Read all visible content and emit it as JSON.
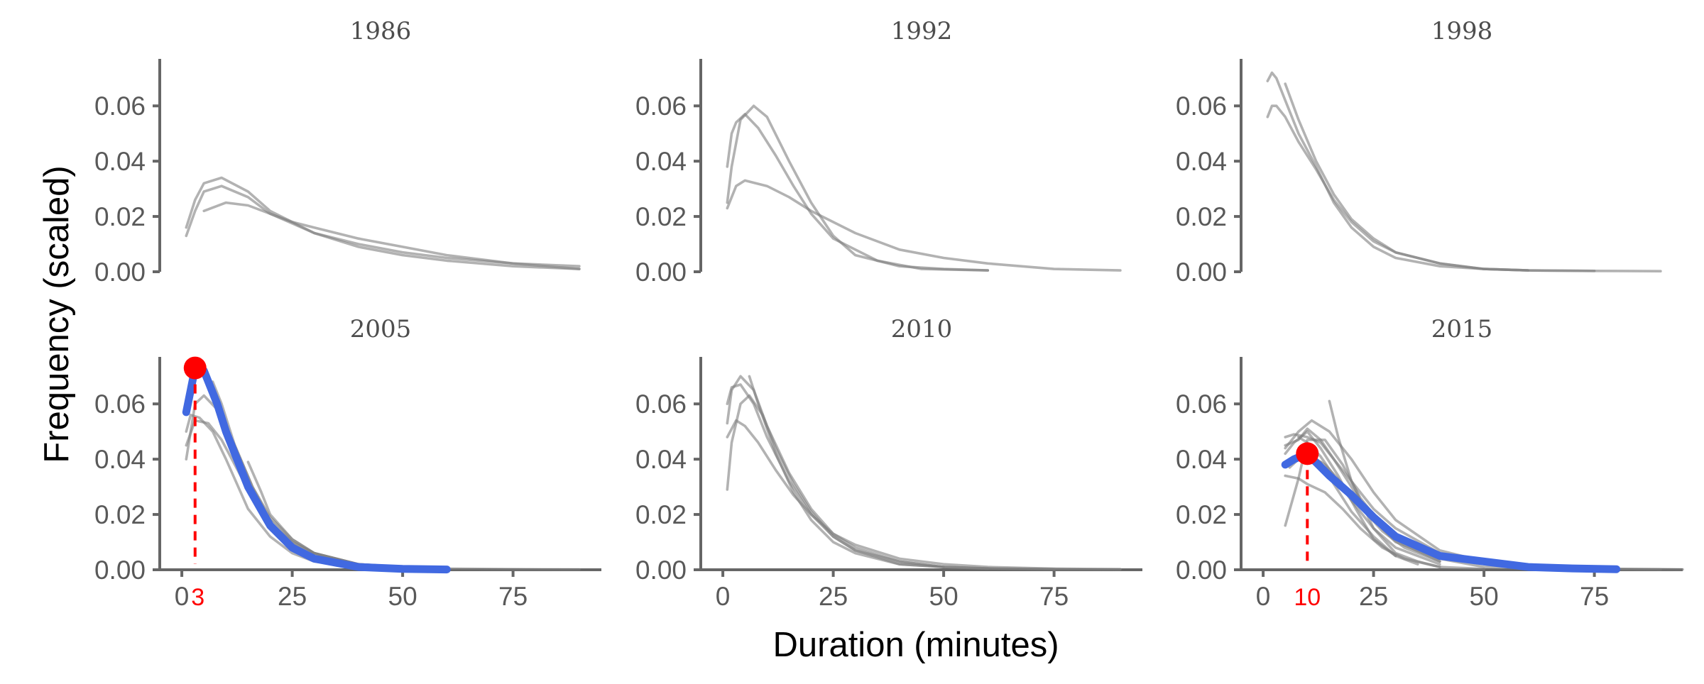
{
  "chart_data": {
    "type": "line",
    "layout": "facet-grid-2x3",
    "xlabel": "Duration (minutes)",
    "ylabel": "Frequency (scaled)",
    "xlim": [
      -5,
      95
    ],
    "ylim": [
      0,
      0.077
    ],
    "x_ticks": [
      0,
      25,
      50,
      75
    ],
    "y_ticks": [
      0,
      0.02,
      0.04,
      0.06
    ],
    "y_tick_labels": [
      "0.00",
      "0.02",
      "0.04",
      "0.06"
    ],
    "colors": {
      "background_lines": "#7f7f7f",
      "highlight_line": "#4169e1",
      "mode_marker": "#ff0000",
      "axis": "#666666",
      "tick_text": "#595959"
    },
    "panels": [
      {
        "title": "1986",
        "series": [
          {
            "x": [
              1,
              3,
              5,
              9,
              15,
              20,
              30,
              40,
              50,
              60,
              75,
              90
            ],
            "y": [
              0.016,
              0.026,
              0.032,
              0.034,
              0.029,
              0.022,
              0.014,
              0.009,
              0.006,
              0.004,
              0.002,
              0.001
            ]
          },
          {
            "x": [
              1,
              3,
              5,
              9,
              15,
              20,
              30,
              40,
              50,
              60,
              75,
              90
            ],
            "y": [
              0.013,
              0.022,
              0.029,
              0.031,
              0.027,
              0.021,
              0.014,
              0.01,
              0.007,
              0.005,
              0.003,
              0.001
            ]
          },
          {
            "x": [
              5,
              10,
              15,
              20,
              25,
              30,
              40,
              50,
              60,
              75,
              90
            ],
            "y": [
              0.022,
              0.025,
              0.024,
              0.021,
              0.018,
              0.016,
              0.012,
              0.009,
              0.006,
              0.003,
              0.002
            ]
          }
        ]
      },
      {
        "title": "1992",
        "series": [
          {
            "x": [
              1,
              2,
              4,
              7,
              10,
              15,
              20,
              25,
              30,
              40,
              50,
              60
            ],
            "y": [
              0.025,
              0.038,
              0.055,
              0.06,
              0.056,
              0.04,
              0.025,
              0.013,
              0.006,
              0.002,
              0.001,
              0.0005
            ]
          },
          {
            "x": [
              1,
              2,
              3,
              5,
              8,
              12,
              16,
              20,
              25,
              35,
              45,
              60
            ],
            "y": [
              0.038,
              0.05,
              0.054,
              0.057,
              0.052,
              0.042,
              0.031,
              0.021,
              0.012,
              0.004,
              0.001,
              0.0005
            ]
          },
          {
            "x": [
              1,
              3,
              5,
              10,
              15,
              20,
              30,
              40,
              50,
              60,
              75,
              90
            ],
            "y": [
              0.023,
              0.031,
              0.033,
              0.031,
              0.027,
              0.022,
              0.014,
              0.008,
              0.005,
              0.003,
              0.001,
              0.0005
            ]
          }
        ]
      },
      {
        "title": "1998",
        "series": [
          {
            "x": [
              1,
              2,
              3,
              5,
              8,
              12,
              16,
              20,
              25,
              30,
              40,
              50,
              60,
              75
            ],
            "y": [
              0.069,
              0.072,
              0.07,
              0.062,
              0.05,
              0.038,
              0.025,
              0.016,
              0.009,
              0.005,
              0.002,
              0.001,
              0.0005,
              0.0003
            ]
          },
          {
            "x": [
              1,
              2,
              3,
              5,
              8,
              12,
              16,
              20,
              25,
              30,
              40,
              50,
              60,
              75,
              90
            ],
            "y": [
              0.056,
              0.06,
              0.06,
              0.056,
              0.047,
              0.037,
              0.026,
              0.018,
              0.011,
              0.007,
              0.003,
              0.001,
              0.0005,
              0.0003,
              0.0002
            ]
          },
          {
            "x": [
              5,
              8,
              12,
              16,
              20,
              25,
              30,
              40,
              50,
              60
            ],
            "y": [
              0.068,
              0.055,
              0.04,
              0.028,
              0.019,
              0.012,
              0.007,
              0.003,
              0.001,
              0.0005
            ]
          }
        ]
      },
      {
        "title": "2005",
        "mode": {
          "x": 3,
          "y": 0.073,
          "label": "3"
        },
        "highlight": {
          "x": [
            1,
            3,
            5,
            8,
            10,
            15,
            20,
            25,
            30,
            40,
            50,
            60
          ],
          "y": [
            0.057,
            0.073,
            0.072,
            0.06,
            0.05,
            0.03,
            0.016,
            0.008,
            0.004,
            0.001,
            0.0003,
            0.0001
          ]
        },
        "series": [
          {
            "x": [
              1,
              3,
              5,
              8,
              12,
              16,
              20,
              25,
              30,
              40,
              50,
              60,
              75,
              90
            ],
            "y": [
              0.04,
              0.06,
              0.063,
              0.058,
              0.045,
              0.03,
              0.018,
              0.01,
              0.006,
              0.002,
              0.001,
              0.0004,
              0.0002,
              0.0001
            ]
          },
          {
            "x": [
              1,
              2,
              4,
              7,
              10,
              15,
              20,
              25,
              30,
              40,
              50
            ],
            "y": [
              0.05,
              0.056,
              0.055,
              0.05,
              0.04,
              0.022,
              0.012,
              0.006,
              0.003,
              0.001,
              0.0003
            ]
          },
          {
            "x": [
              1,
              3,
              6,
              9,
              12,
              16,
              20,
              25,
              30,
              40,
              50,
              60
            ],
            "y": [
              0.045,
              0.054,
              0.053,
              0.047,
              0.038,
              0.026,
              0.017,
              0.01,
              0.006,
              0.002,
              0.001,
              0.0003
            ]
          },
          {
            "x": [
              7,
              9,
              12,
              16,
              20,
              25,
              30,
              40
            ],
            "y": [
              0.068,
              0.06,
              0.045,
              0.03,
              0.019,
              0.011,
              0.006,
              0.002
            ]
          },
          {
            "x": [
              15,
              18,
              20,
              25,
              30,
              40,
              50
            ],
            "y": [
              0.039,
              0.028,
              0.02,
              0.011,
              0.006,
              0.002,
              0.001
            ]
          }
        ]
      },
      {
        "title": "2010",
        "series": [
          {
            "x": [
              1,
              2,
              4,
              7,
              10,
              15,
              20,
              25,
              30,
              40,
              50,
              60,
              75,
              90
            ],
            "y": [
              0.053,
              0.065,
              0.07,
              0.065,
              0.052,
              0.035,
              0.022,
              0.013,
              0.008,
              0.003,
              0.001,
              0.0005,
              0.0002,
              0.0001
            ]
          },
          {
            "x": [
              1,
              2,
              4,
              7,
              10,
              15,
              20,
              25,
              30,
              40,
              50,
              60,
              75
            ],
            "y": [
              0.06,
              0.066,
              0.067,
              0.06,
              0.048,
              0.032,
              0.02,
              0.012,
              0.007,
              0.003,
              0.001,
              0.0005,
              0.0002
            ]
          },
          {
            "x": [
              1,
              3,
              5,
              8,
              12,
              16,
              20,
              25,
              30,
              40,
              50,
              60,
              75,
              90
            ],
            "y": [
              0.048,
              0.054,
              0.052,
              0.046,
              0.036,
              0.027,
              0.02,
              0.013,
              0.009,
              0.004,
              0.002,
              0.001,
              0.0004,
              0.0002
            ]
          },
          {
            "x": [
              1,
              2,
              4,
              6,
              9,
              12,
              16,
              20,
              25,
              30,
              40,
              50
            ],
            "y": [
              0.029,
              0.046,
              0.06,
              0.063,
              0.056,
              0.044,
              0.031,
              0.021,
              0.012,
              0.007,
              0.002,
              0.001
            ]
          },
          {
            "x": [
              6,
              8,
              12,
              16,
              20,
              25,
              30,
              40,
              50,
              60
            ],
            "y": [
              0.07,
              0.06,
              0.042,
              0.028,
              0.018,
              0.01,
              0.006,
              0.002,
              0.001,
              0.0004
            ]
          }
        ]
      },
      {
        "title": "2015",
        "mode": {
          "x": 10,
          "y": 0.042,
          "label": "10"
        },
        "highlight": {
          "x": [
            5,
            7,
            10,
            15,
            20,
            25,
            30,
            40,
            50,
            60,
            70,
            80
          ],
          "y": [
            0.038,
            0.04,
            0.042,
            0.034,
            0.027,
            0.019,
            0.012,
            0.005,
            0.003,
            0.001,
            0.0005,
            0.0002
          ]
        },
        "series": [
          {
            "x": [
              5,
              7,
              10,
              13,
              16,
              20,
              25,
              30,
              40,
              50,
              60,
              75,
              90
            ],
            "y": [
              0.048,
              0.049,
              0.048,
              0.046,
              0.04,
              0.032,
              0.022,
              0.015,
              0.006,
              0.002,
              0.001,
              0.0003,
              0.0001
            ]
          },
          {
            "x": [
              5,
              8,
              11,
              15,
              20,
              25,
              30,
              40,
              50,
              60,
              75,
              90,
              95
            ],
            "y": [
              0.044,
              0.05,
              0.054,
              0.05,
              0.04,
              0.028,
              0.018,
              0.007,
              0.003,
              0.001,
              0.0004,
              0.0002,
              0.0001
            ]
          },
          {
            "x": [
              5,
              8,
              10,
              13,
              16,
              20,
              25,
              30,
              40,
              50,
              60
            ],
            "y": [
              0.045,
              0.047,
              0.051,
              0.047,
              0.04,
              0.03,
              0.018,
              0.01,
              0.004,
              0.001,
              0.0005
            ]
          },
          {
            "x": [
              5,
              8,
              10,
              14,
              18,
              22,
              27,
              32,
              40
            ],
            "y": [
              0.016,
              0.033,
              0.047,
              0.047,
              0.038,
              0.026,
              0.016,
              0.009,
              0.003
            ]
          },
          {
            "x": [
              6,
              8,
              10,
              14,
              18,
              22,
              27,
              32,
              40
            ],
            "y": [
              0.037,
              0.04,
              0.042,
              0.038,
              0.031,
              0.023,
              0.014,
              0.008,
              0.003
            ]
          },
          {
            "x": [
              5,
              8,
              10,
              14,
              18,
              22,
              27,
              32,
              40
            ],
            "y": [
              0.034,
              0.033,
              0.031,
              0.028,
              0.022,
              0.015,
              0.008,
              0.004,
              0.001
            ]
          },
          {
            "x": [
              15,
              17,
              20,
              25,
              30,
              35,
              40,
              50
            ],
            "y": [
              0.061,
              0.048,
              0.032,
              0.015,
              0.006,
              0.003,
              0.001,
              0.0003
            ]
          },
          {
            "x": [
              13,
              16,
              20,
              25,
              30,
              35
            ],
            "y": [
              0.039,
              0.031,
              0.021,
              0.012,
              0.005,
              0.002
            ]
          },
          {
            "x": [
              8,
              10,
              13,
              16,
              20,
              25,
              30,
              40
            ],
            "y": [
              0.048,
              0.046,
              0.041,
              0.034,
              0.025,
              0.015,
              0.008,
              0.002
            ]
          },
          {
            "x": [
              5,
              7,
              10,
              13,
              17,
              21,
              25,
              30
            ],
            "y": [
              0.042,
              0.046,
              0.05,
              0.044,
              0.034,
              0.022,
              0.011,
              0.005
            ]
          }
        ]
      }
    ]
  }
}
